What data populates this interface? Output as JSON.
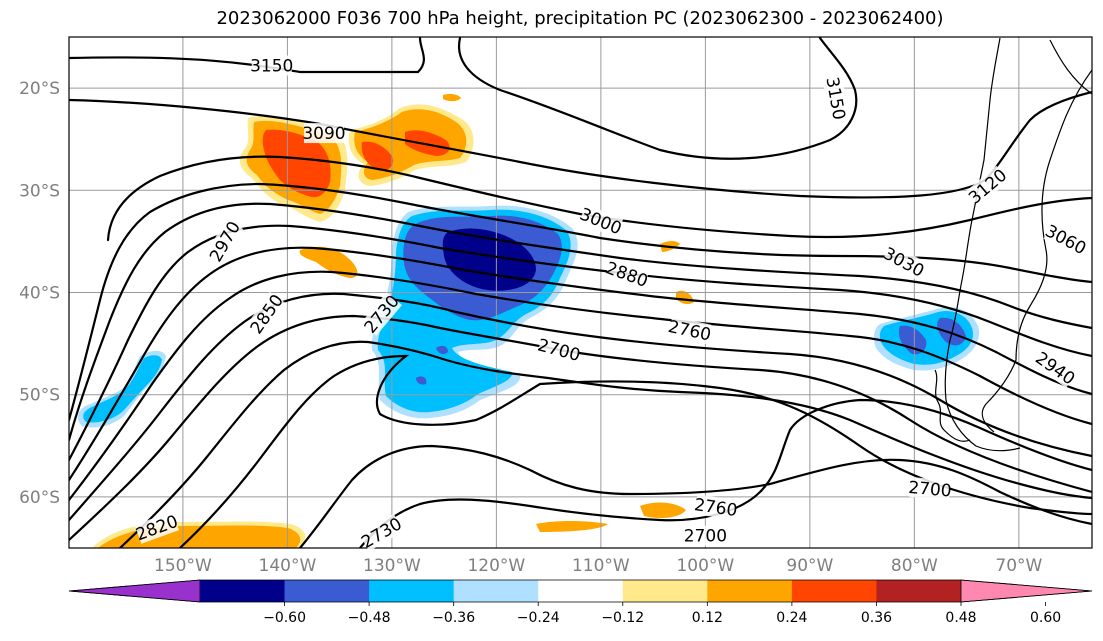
{
  "title": "2023062000 F036 700 hPa height, precipitation PC (2023062300 - 2023062400)",
  "lat_labels": [
    {
      "lat": -20,
      "label": "20°S"
    },
    {
      "lat": -30,
      "label": "30°S"
    },
    {
      "lat": -40,
      "label": "40°S"
    },
    {
      "lat": -50,
      "label": "50°S"
    },
    {
      "lat": -60,
      "label": "60°S"
    }
  ],
  "lon_labels": [
    {
      "lon": -150,
      "label": "150°W"
    },
    {
      "lon": -140,
      "label": "140°W"
    },
    {
      "lon": -130,
      "label": "130°W"
    },
    {
      "lon": -120,
      "label": "120°W"
    },
    {
      "lon": -110,
      "label": "110°W"
    },
    {
      "lon": -100,
      "label": "100°W"
    },
    {
      "lon": -90,
      "label": "90°W"
    },
    {
      "lon": -80,
      "label": "80°W"
    },
    {
      "lon": -70,
      "label": "70°W"
    }
  ],
  "contour_labels": [
    {
      "text": "3150",
      "lon": -141.5,
      "lat": -17.8,
      "rot": 0
    },
    {
      "text": "3150",
      "lon": -87.5,
      "lat": -21.0,
      "rot": 80
    },
    {
      "text": "3090",
      "lon": -136.5,
      "lat": -24.4,
      "rot": 0
    },
    {
      "text": "3120",
      "lon": -73.0,
      "lat": -29.6,
      "rot": -40
    },
    {
      "text": "3060",
      "lon": -65.5,
      "lat": -34.8,
      "rot": 28
    },
    {
      "text": "3000",
      "lon": -110.0,
      "lat": -33.0,
      "rot": 22
    },
    {
      "text": "2970",
      "lon": -146.0,
      "lat": -35.0,
      "rot": -60
    },
    {
      "text": "3030",
      "lon": -81.0,
      "lat": -37.0,
      "rot": 28
    },
    {
      "text": "2880",
      "lon": -107.5,
      "lat": -38.2,
      "rot": 20
    },
    {
      "text": "2850",
      "lon": -142.0,
      "lat": -42.1,
      "rot": -55
    },
    {
      "text": "2730",
      "lon": -131.0,
      "lat": -42.1,
      "rot": -50
    },
    {
      "text": "2760",
      "lon": -101.5,
      "lat": -43.7,
      "rot": 12
    },
    {
      "text": "2940",
      "lon": -66.5,
      "lat": -47.4,
      "rot": 35
    },
    {
      "text": "2700",
      "lon": -114.0,
      "lat": -45.6,
      "rot": 15
    },
    {
      "text": "2760",
      "lon": -99.0,
      "lat": -61.0,
      "rot": 8
    },
    {
      "text": "2700",
      "lon": -78.5,
      "lat": -59.2,
      "rot": 5
    },
    {
      "text": "2820",
      "lon": -152.5,
      "lat": -63.0,
      "rot": -20
    },
    {
      "text": "2700",
      "lon": -100.0,
      "lat": -63.8,
      "rot": 0
    },
    {
      "text": "2730",
      "lon": -131.0,
      "lat": -63.5,
      "rot": -30
    }
  ],
  "colorbar": {
    "colors": [
      "#9932cc",
      "#00008b",
      "#3a5bd1",
      "#00bfff",
      "#b0e0ff",
      "#ffffff",
      "#ffe98a",
      "#ffa500",
      "#ff4500",
      "#b22222",
      "#ff88b0"
    ],
    "tick_labels": [
      "−0.60",
      "−0.48",
      "−0.36",
      "−0.24",
      "−0.12",
      "0.12",
      "0.24",
      "0.36",
      "0.48",
      "0.60"
    ]
  },
  "precip_colors": {
    "light_blue": "#00bfff",
    "mid_blue": "#3a5bd1",
    "dark_blue": "#00008b",
    "pale_yellow": "#ffe98a",
    "orange": "#ffa500",
    "red_orange": "#ff4500"
  }
}
